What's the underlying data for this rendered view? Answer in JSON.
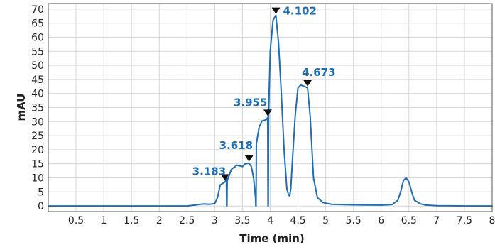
{
  "chart_data": {
    "type": "line",
    "title": "",
    "xlabel": "Time (min)",
    "ylabel": "mAU",
    "xlim": [
      0,
      8
    ],
    "ylim": [
      -2,
      72
    ],
    "grid": true,
    "x_ticks": [
      "0.5",
      "1",
      "1.5",
      "2",
      "2.5",
      "3",
      "3.5",
      "4",
      "4.5",
      "5",
      "5.5",
      "6",
      "6.5",
      "7",
      "7.5",
      "8"
    ],
    "y_ticks": [
      "0",
      "5",
      "10",
      "15",
      "20",
      "25",
      "30",
      "35",
      "40",
      "45",
      "50",
      "55",
      "60",
      "65",
      "70"
    ],
    "colors": {
      "series": "#1f6db5",
      "marker": "#111111",
      "grid": "#d6d6d6"
    },
    "series": [
      {
        "x": [
          0,
          2.5,
          2.6,
          2.7,
          2.8,
          2.9,
          3.0,
          3.05,
          3.1,
          3.183,
          3.21,
          3.215,
          3.22,
          3.225,
          3.3,
          3.4,
          3.5,
          3.55,
          3.618,
          3.66,
          3.7,
          3.735,
          3.74,
          3.745,
          3.75,
          3.8,
          3.85,
          3.9,
          3.935,
          3.955,
          3.96,
          3.965,
          3.97,
          3.98,
          4.0,
          4.05,
          4.102,
          4.15,
          4.2,
          4.25,
          4.3,
          4.33,
          4.35,
          4.37,
          4.4,
          4.45,
          4.5,
          4.55,
          4.62,
          4.673,
          4.72,
          4.78,
          4.85,
          4.95,
          5.1,
          5.5,
          6.0,
          6.2,
          6.3,
          6.35,
          6.4,
          6.45,
          6.5,
          6.55,
          6.6,
          6.7,
          6.8,
          7.0,
          7.5,
          8.0
        ],
        "y": [
          0,
          0,
          0.2,
          0.5,
          0.7,
          0.6,
          0.8,
          3,
          7.5,
          8.5,
          9.5,
          0,
          0,
          9,
          13,
          14.5,
          14,
          15,
          15.2,
          14,
          10,
          3,
          0,
          0,
          22,
          28,
          30.2,
          30.5,
          30.8,
          31.5,
          0,
          0,
          30,
          40,
          55,
          66,
          67.8,
          58,
          40,
          20,
          6,
          4,
          3.5,
          6,
          16,
          32,
          42,
          43,
          42.5,
          42,
          32,
          10,
          3,
          1.2,
          0.6,
          0.4,
          0.3,
          0.5,
          2,
          5,
          9,
          10,
          8.5,
          5,
          2,
          0.8,
          0.3,
          0.1,
          0,
          0
        ]
      }
    ],
    "peaks": [
      {
        "x": 3.183,
        "y": 8.5,
        "label": "3.183"
      },
      {
        "x": 3.618,
        "y": 15.2,
        "label": "3.618"
      },
      {
        "x": 3.955,
        "y": 31.5,
        "label": "3.955"
      },
      {
        "x": 4.102,
        "y": 67.8,
        "label": "4.102"
      },
      {
        "x": 4.673,
        "y": 42,
        "label": "4.673"
      }
    ]
  }
}
